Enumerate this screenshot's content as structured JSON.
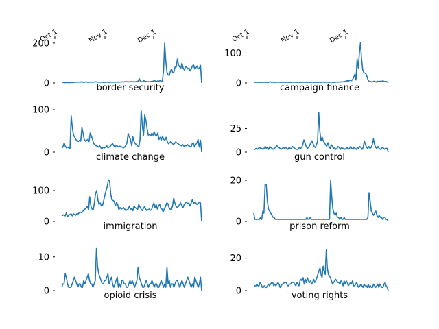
{
  "chart_data": {
    "type": "line",
    "title": "",
    "x_axis": {
      "range": [
        "Oct 1",
        "Dec 31"
      ],
      "tick_labels": [
        "Oct 1",
        "Nov 1",
        "Dec 1"
      ]
    },
    "line_color": "#1f77b4",
    "panels": [
      {
        "title": "border security",
        "ylim": [
          0,
          210
        ],
        "yticks": [
          0,
          200
        ],
        "values": [
          3,
          3,
          2,
          2,
          2,
          3,
          2,
          2,
          3,
          2,
          3,
          3,
          4,
          4,
          5,
          4,
          4,
          6,
          4,
          3,
          4,
          5,
          4,
          3,
          4,
          5,
          4,
          4,
          5,
          6,
          5,
          4,
          4,
          4,
          4,
          4,
          3,
          3,
          4,
          4,
          4,
          3,
          4,
          4,
          4,
          4,
          4,
          4,
          5,
          4,
          4,
          5,
          5,
          6,
          5,
          7,
          6,
          7,
          5,
          6,
          7,
          6,
          7,
          6,
          6,
          8,
          9,
          22,
          9,
          6,
          6,
          12,
          6,
          8,
          6,
          7,
          5,
          7,
          8,
          9,
          12,
          10,
          8,
          10,
          9,
          12,
          9,
          10,
          60,
          200,
          110,
          55,
          40,
          38,
          60,
          70,
          50,
          55,
          80,
          80,
          120,
          90,
          80,
          75,
          100,
          75,
          65,
          80,
          80,
          70,
          75,
          60,
          70,
          85,
          90,
          70,
          75,
          85,
          70,
          75,
          88,
          0
        ]
      },
      {
        "title": "campaign finance",
        "ylim": [
          0,
          140
        ],
        "yticks": [
          0,
          100
        ],
        "values": [
          3,
          2,
          2,
          3,
          2,
          2,
          2,
          2,
          3,
          2,
          3,
          2,
          2,
          2,
          3,
          4,
          2,
          3,
          2,
          2,
          2,
          3,
          2,
          3,
          2,
          2,
          3,
          2,
          2,
          2,
          3,
          2,
          2,
          2,
          2,
          3,
          2,
          3,
          2,
          2,
          3,
          2,
          2,
          2,
          3,
          2,
          3,
          2,
          2,
          2,
          2,
          3,
          2,
          3,
          2,
          2,
          3,
          2,
          2,
          3,
          2,
          2,
          3,
          3,
          2,
          3,
          3,
          2,
          2,
          3,
          3,
          2,
          2,
          2,
          3,
          3,
          3,
          3,
          3,
          4,
          4,
          4,
          5,
          6,
          8,
          6,
          8,
          10,
          8,
          12,
          20,
          30,
          10,
          80,
          50,
          100,
          135,
          80,
          45,
          35,
          33,
          30,
          20,
          8,
          5,
          5,
          3,
          4,
          6,
          5,
          3,
          6,
          5,
          5,
          6,
          5,
          7,
          6,
          4,
          5,
          4,
          1
        ]
      },
      {
        "title": "climate change",
        "ylim": [
          0,
          100
        ],
        "yticks": [
          0,
          100
        ],
        "values": [
          10,
          12,
          22,
          14,
          10,
          12,
          10,
          9,
          86,
          55,
          40,
          35,
          30,
          26,
          25,
          28,
          26,
          58,
          45,
          30,
          26,
          28,
          30,
          25,
          45,
          38,
          30,
          20,
          18,
          15,
          14,
          12,
          15,
          10,
          8,
          12,
          10,
          12,
          15,
          10,
          12,
          14,
          18,
          20,
          15,
          12,
          16,
          14,
          12,
          14,
          13,
          12,
          10,
          12,
          16,
          22,
          44,
          35,
          30,
          15,
          36,
          25,
          20,
          18,
          15,
          12,
          30,
          98,
          60,
          40,
          88,
          75,
          55,
          40,
          42,
          38,
          45,
          40,
          48,
          40,
          38,
          45,
          30,
          35,
          28,
          38,
          30,
          28,
          35,
          25,
          20,
          22,
          25,
          22,
          18,
          20,
          24,
          22,
          20,
          18,
          16,
          15,
          18,
          14,
          16,
          15,
          18,
          15,
          14,
          12,
          20,
          22,
          12,
          18,
          22,
          30,
          12,
          28,
          0
        ]
      },
      {
        "title": "gun control",
        "ylim": [
          0,
          45
        ],
        "yticks": [
          0,
          25
        ],
        "values": [
          3,
          3,
          4,
          3,
          4,
          5,
          4,
          4,
          3,
          4,
          6,
          4,
          5,
          3,
          6,
          5,
          4,
          3,
          4,
          5,
          7,
          6,
          5,
          4,
          3,
          4,
          5,
          4,
          5,
          4,
          3,
          5,
          4,
          4,
          6,
          5,
          4,
          3,
          3,
          3,
          5,
          4,
          5,
          8,
          13,
          10,
          6,
          4,
          5,
          7,
          10,
          12,
          9,
          6,
          5,
          8,
          12,
          42,
          22,
          12,
          16,
          12,
          10,
          8,
          6,
          10,
          6,
          4,
          8,
          6,
          4,
          5,
          3,
          4,
          6,
          5,
          3,
          5,
          4,
          4,
          3,
          4,
          5,
          3,
          4,
          6,
          4,
          3,
          5,
          4,
          3,
          5,
          4,
          6,
          5,
          3,
          5,
          12,
          8,
          5,
          4,
          6,
          4,
          5,
          8,
          14,
          8,
          5,
          4,
          6,
          4,
          3,
          4,
          5,
          4,
          3,
          4,
          4,
          0
        ]
      },
      {
        "title": "immigration",
        "ylim": [
          0,
          140
        ],
        "yticks": [
          0,
          100
        ],
        "values": [
          18,
          20,
          22,
          18,
          28,
          15,
          20,
          22,
          25,
          18,
          25,
          22,
          20,
          25,
          24,
          28,
          30,
          28,
          32,
          38,
          40,
          45,
          48,
          38,
          80,
          50,
          40,
          38,
          60,
          90,
          100,
          70,
          55,
          60,
          50,
          52,
          68,
          85,
          100,
          112,
          135,
          132,
          90,
          70,
          68,
          65,
          50,
          62,
          55,
          38,
          45,
          40,
          42,
          45,
          40,
          35,
          38,
          40,
          50,
          38,
          42,
          35,
          50,
          45,
          42,
          38,
          55,
          48,
          40,
          35,
          42,
          48,
          40,
          35,
          38,
          40,
          36,
          38,
          50,
          60,
          45,
          55,
          40,
          50,
          55,
          42,
          40,
          30,
          42,
          48,
          60,
          58,
          45,
          40,
          38,
          50,
          75,
          60,
          50,
          45,
          48,
          55,
          60,
          50,
          45,
          55,
          60,
          62,
          58,
          60,
          50,
          60,
          70,
          58,
          62,
          60,
          55,
          58,
          62,
          60,
          0
        ]
      },
      {
        "title": "prison reform",
        "ylim": [
          0,
          21
        ],
        "yticks": [
          0,
          20
        ],
        "values": [
          4,
          1,
          1,
          1,
          1,
          1,
          2,
          1,
          5,
          4,
          18,
          18,
          10,
          6,
          5,
          4,
          3,
          2,
          2,
          1,
          1,
          1,
          1,
          1,
          1,
          1,
          1,
          1,
          1,
          1,
          1,
          1,
          1,
          1,
          1,
          1,
          1,
          1,
          1,
          1,
          1,
          1,
          1,
          1,
          1,
          1,
          1,
          2,
          1,
          1,
          2,
          1,
          1,
          1,
          1,
          1,
          1,
          1,
          1,
          1,
          1,
          1,
          1,
          1,
          1,
          1,
          1,
          1,
          20,
          12,
          6,
          4,
          3,
          4,
          2,
          2,
          1,
          2,
          1,
          1,
          2,
          1,
          1,
          1,
          1,
          1,
          1,
          1,
          1,
          1,
          1,
          1,
          1,
          1,
          1,
          1,
          1,
          1,
          1,
          1,
          1,
          2,
          14,
          10,
          5,
          4,
          3,
          4,
          5,
          3,
          2,
          3,
          2,
          2,
          1,
          2,
          2,
          1,
          1,
          0
        ]
      },
      {
        "title": "opioid crisis",
        "ylim": [
          0,
          13
        ],
        "yticks": [
          0,
          10
        ],
        "values": [
          1,
          2,
          2,
          5,
          4,
          2,
          1,
          1,
          1,
          2,
          3,
          4,
          3,
          2,
          1,
          2,
          2,
          1,
          1,
          3,
          2,
          3,
          4,
          5,
          3,
          2,
          2,
          1,
          2,
          3,
          12.5,
          7,
          5,
          4,
          3,
          2,
          2,
          3,
          3,
          4,
          5,
          2,
          3,
          4,
          2,
          1,
          2,
          3,
          4,
          1,
          2,
          1,
          3,
          3,
          2,
          2,
          1,
          1,
          2,
          3,
          2,
          3,
          2,
          1,
          2,
          3,
          7,
          4,
          3,
          2,
          1,
          1,
          2,
          3,
          2,
          1,
          2,
          2,
          3,
          2,
          1,
          2,
          2,
          1,
          1,
          2,
          3,
          2,
          1,
          2,
          1,
          7,
          2,
          3,
          1,
          2,
          2,
          1,
          2,
          3,
          3,
          2,
          1,
          2,
          3,
          2,
          1,
          2,
          3,
          4,
          3,
          2,
          1,
          2,
          1,
          4,
          3,
          2,
          1,
          2,
          4,
          0
        ]
      },
      {
        "title": "voting rights",
        "ylim": [
          0,
          27
        ],
        "yticks": [
          0,
          20
        ],
        "values": [
          2,
          3,
          3,
          4,
          3,
          3,
          5,
          4,
          2,
          2,
          3,
          2,
          2,
          3,
          4,
          3,
          4,
          5,
          5,
          3,
          4,
          3,
          4,
          5,
          4,
          2,
          3,
          4,
          4,
          5,
          5,
          5,
          3,
          3,
          4,
          4,
          5,
          5,
          5,
          4,
          3,
          5,
          4,
          3,
          6,
          7,
          6,
          8,
          4,
          7,
          5,
          8,
          6,
          5,
          6,
          4,
          5,
          7,
          5,
          6,
          8,
          10,
          12,
          14,
          10,
          8,
          15,
          12,
          10,
          25,
          14,
          10,
          9,
          8,
          6,
          4,
          5,
          6,
          7,
          6,
          5,
          5,
          4,
          6,
          5,
          3,
          6,
          4,
          6,
          5,
          3,
          4,
          5,
          4,
          6,
          3,
          3,
          4,
          5,
          3,
          2,
          3,
          4,
          3,
          2,
          4,
          3,
          3,
          2,
          4,
          2,
          3,
          2,
          2,
          4,
          3,
          2,
          3,
          4,
          2,
          4,
          3,
          2,
          2,
          4,
          5,
          3,
          2,
          0
        ]
      }
    ]
  }
}
